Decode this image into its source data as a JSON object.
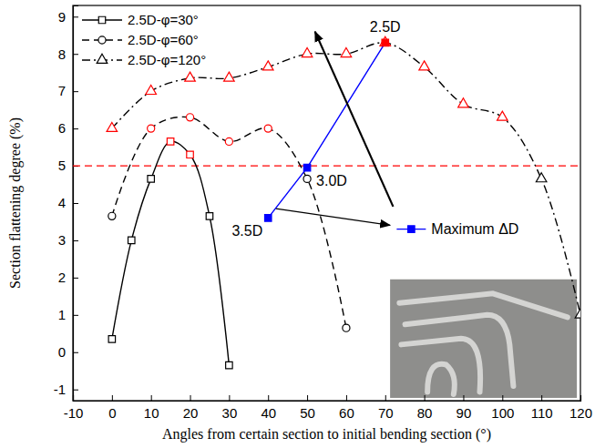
{
  "chart_data": {
    "type": "line",
    "x_label": "Angles from certain section to initial bending section (°)",
    "y_label": "Section flattening degree (%)",
    "xlim": [
      -10,
      120
    ],
    "xticks": [
      -10,
      0,
      10,
      20,
      30,
      40,
      50,
      60,
      70,
      80,
      90,
      100,
      110,
      120
    ],
    "ylim": [
      -1.3,
      9.3
    ],
    "yticks": [
      -1,
      0,
      1,
      2,
      3,
      4,
      5,
      6,
      7,
      8,
      9
    ],
    "legend": "top-left",
    "series": [
      {
        "name": "2.5D-φ=30°",
        "type": "spline",
        "x": [
          0,
          5,
          10,
          15,
          20,
          25,
          30
        ],
        "values": [
          0.35,
          3.0,
          4.65,
          5.65,
          5.3,
          3.65,
          -0.35
        ],
        "color": "#000000",
        "colors": [
          "#000000",
          "#000000",
          "#000000",
          "#ff0000",
          "#ff0000",
          "#000000",
          "#000000"
        ],
        "marker": "square-open",
        "line_style": "solid"
      },
      {
        "name": "2.5D-φ=60°",
        "type": "spline",
        "x": [
          0,
          10,
          20,
          30,
          40,
          50,
          60
        ],
        "values": [
          3.65,
          6.0,
          6.3,
          5.65,
          6.0,
          4.65,
          0.65
        ],
        "color": "#000000",
        "colors": [
          "#000000",
          "#ff0000",
          "#ff0000",
          "#ff0000",
          "#ff0000",
          "#000000",
          "#000000"
        ],
        "marker": "circle-open",
        "line_style": "dashed"
      },
      {
        "name": "2.5D-φ=120°",
        "type": "spline",
        "x": [
          0,
          10,
          20,
          30,
          40,
          50,
          60,
          70,
          80,
          90,
          100,
          110,
          120
        ],
        "values": [
          6.0,
          7.0,
          7.35,
          7.35,
          7.65,
          8.0,
          8.0,
          8.3,
          7.65,
          6.65,
          6.3,
          4.65,
          1.0
        ],
        "color": "#000000",
        "colors": [
          "#ff0000",
          "#ff0000",
          "#ff0000",
          "#ff0000",
          "#ff0000",
          "#ff0000",
          "#ff0000",
          "#ff0000",
          "#ff0000",
          "#ff0000",
          "#ff0000",
          "#000000",
          "#000000"
        ],
        "marker": "triangle-open",
        "line_style": "dash-dot"
      },
      {
        "name": "Maximum ΔD",
        "type": "line",
        "x": [
          40,
          50,
          70
        ],
        "values": [
          3.6,
          4.95,
          8.3
        ],
        "labels": [
          "3.5D",
          "3.0D",
          "2.5D"
        ],
        "color": "#0000ff",
        "colors": [
          "#0000ff",
          "#0000ff",
          "#ff0000"
        ],
        "marker": "square",
        "line_style": "solid"
      }
    ],
    "reference_lines": [
      {
        "value": 5,
        "color": "#ff0000",
        "line_style": "dashed"
      }
    ]
  }
}
